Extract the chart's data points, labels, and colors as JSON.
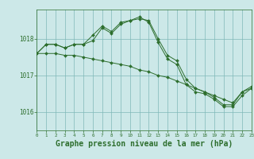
{
  "background_color": "#cce8e8",
  "plot_bg_color": "#cce8e8",
  "line_color": "#2d6e2d",
  "grid_color": "#7fb8b8",
  "xlabel": "Graphe pression niveau de la mer (hPa)",
  "xlabel_fontsize": 7,
  "tick_color": "#2d6e2d",
  "xlim": [
    0,
    23
  ],
  "ylim": [
    1015.5,
    1018.8
  ],
  "yticks": [
    1016,
    1017,
    1018
  ],
  "xticks": [
    0,
    1,
    2,
    3,
    4,
    5,
    6,
    7,
    8,
    9,
    10,
    11,
    12,
    13,
    14,
    15,
    16,
    17,
    18,
    19,
    20,
    21,
    22,
    23
  ],
  "series": [
    [
      1017.6,
      1017.85,
      1017.85,
      1017.75,
      1017.85,
      1017.85,
      1018.1,
      1018.35,
      1018.2,
      1018.45,
      1018.5,
      1018.55,
      1018.5,
      1018.0,
      1017.55,
      1017.4,
      1016.9,
      1016.65,
      1016.55,
      1016.4,
      1016.2,
      1016.2,
      1016.55,
      1016.7
    ],
    [
      1017.6,
      1017.85,
      1017.85,
      1017.75,
      1017.85,
      1017.85,
      1017.95,
      1018.3,
      1018.15,
      1018.4,
      1018.5,
      1018.6,
      1018.45,
      1017.9,
      1017.45,
      1017.3,
      1016.75,
      1016.55,
      1016.5,
      1016.35,
      1016.15,
      1016.15,
      1016.45,
      1016.65
    ],
    [
      1017.6,
      1017.6,
      1017.6,
      1017.55,
      1017.55,
      1017.5,
      1017.45,
      1017.4,
      1017.35,
      1017.3,
      1017.25,
      1017.15,
      1017.1,
      1017.0,
      1016.95,
      1016.85,
      1016.75,
      1016.65,
      1016.55,
      1016.45,
      1016.35,
      1016.25,
      1016.55,
      1016.65
    ]
  ]
}
